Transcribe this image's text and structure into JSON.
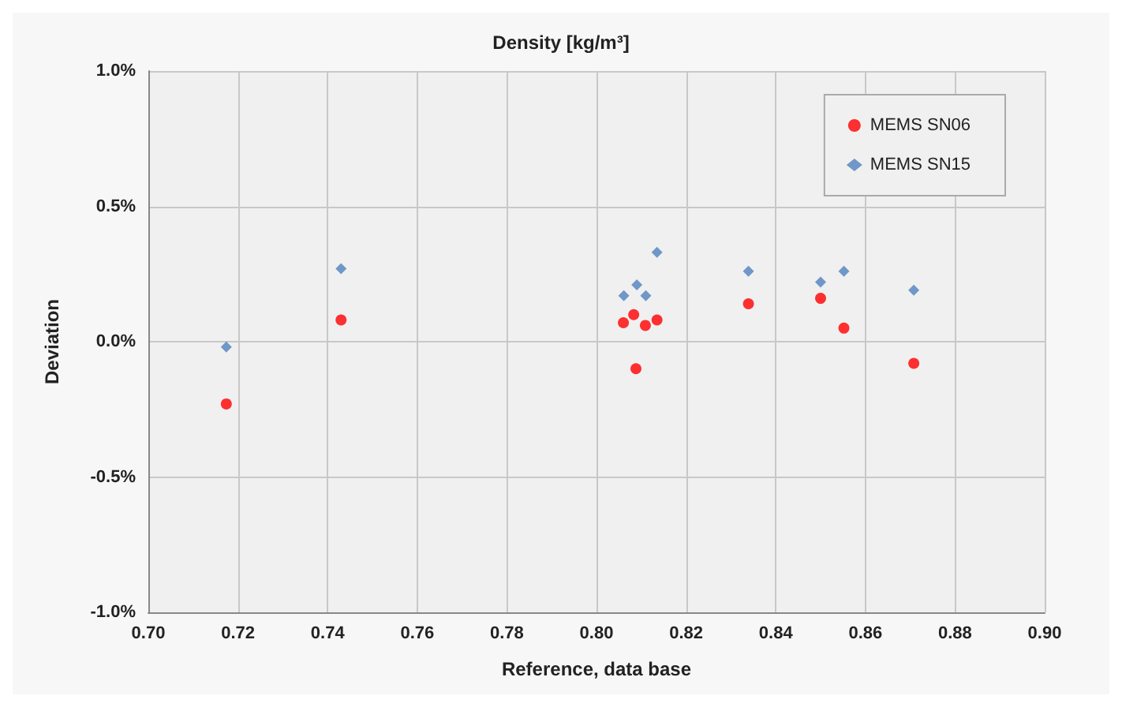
{
  "chart_data": {
    "type": "scatter",
    "title": "Density [kg/m³]",
    "xlabel": "Reference, data base",
    "ylabel": "Deviation",
    "xlim": [
      0.7,
      0.9
    ],
    "xticks": [
      {
        "value": 0.7,
        "label": "0.70"
      },
      {
        "value": 0.72,
        "label": "0.72"
      },
      {
        "value": 0.74,
        "label": "0.74"
      },
      {
        "value": 0.76,
        "label": "0.76"
      },
      {
        "value": 0.78,
        "label": "0.78"
      },
      {
        "value": 0.8,
        "label": "0.80"
      },
      {
        "value": 0.82,
        "label": "0.82"
      },
      {
        "value": 0.84,
        "label": "0.84"
      },
      {
        "value": 0.86,
        "label": "0.86"
      },
      {
        "value": 0.88,
        "label": "0.88"
      },
      {
        "value": 0.9,
        "label": "0.90"
      }
    ],
    "ylim": [
      -1,
      1
    ],
    "yticks": [
      {
        "value": -1,
        "label": "-1.0%"
      },
      {
        "value": -0.5,
        "label": "-0.5%"
      },
      {
        "value": 0,
        "label": "0.0%"
      },
      {
        "value": 0.5,
        "label": "0.5%"
      },
      {
        "value": 1,
        "label": "1.0%"
      }
    ],
    "grid": true,
    "legend": "top right",
    "series": [
      {
        "name": "MEMS SN06",
        "color": "#ff0000",
        "marker": "circle",
        "x": [
          0.7174,
          0.743,
          0.806,
          0.8083,
          0.8088,
          0.8109,
          0.8135,
          0.8339,
          0.85,
          0.8552,
          0.8708
        ],
        "values": [
          -0.23,
          0.08,
          0.07,
          0.1,
          -0.1,
          0.06,
          0.08,
          0.14,
          0.16,
          0.05,
          -0.08
        ]
      },
      {
        "name": "MEMS SN15",
        "color": "#4f81bd",
        "marker": "diamond",
        "x": [
          0.7174,
          0.743,
          0.8061,
          0.8083,
          0.809,
          0.811,
          0.8135,
          0.8339,
          0.85,
          0.8552,
          0.8708
        ],
        "values": [
          -0.02,
          0.27,
          0.17,
          null,
          0.21,
          0.17,
          0.33,
          0.26,
          0.22,
          0.26,
          0.19
        ]
      }
    ]
  }
}
